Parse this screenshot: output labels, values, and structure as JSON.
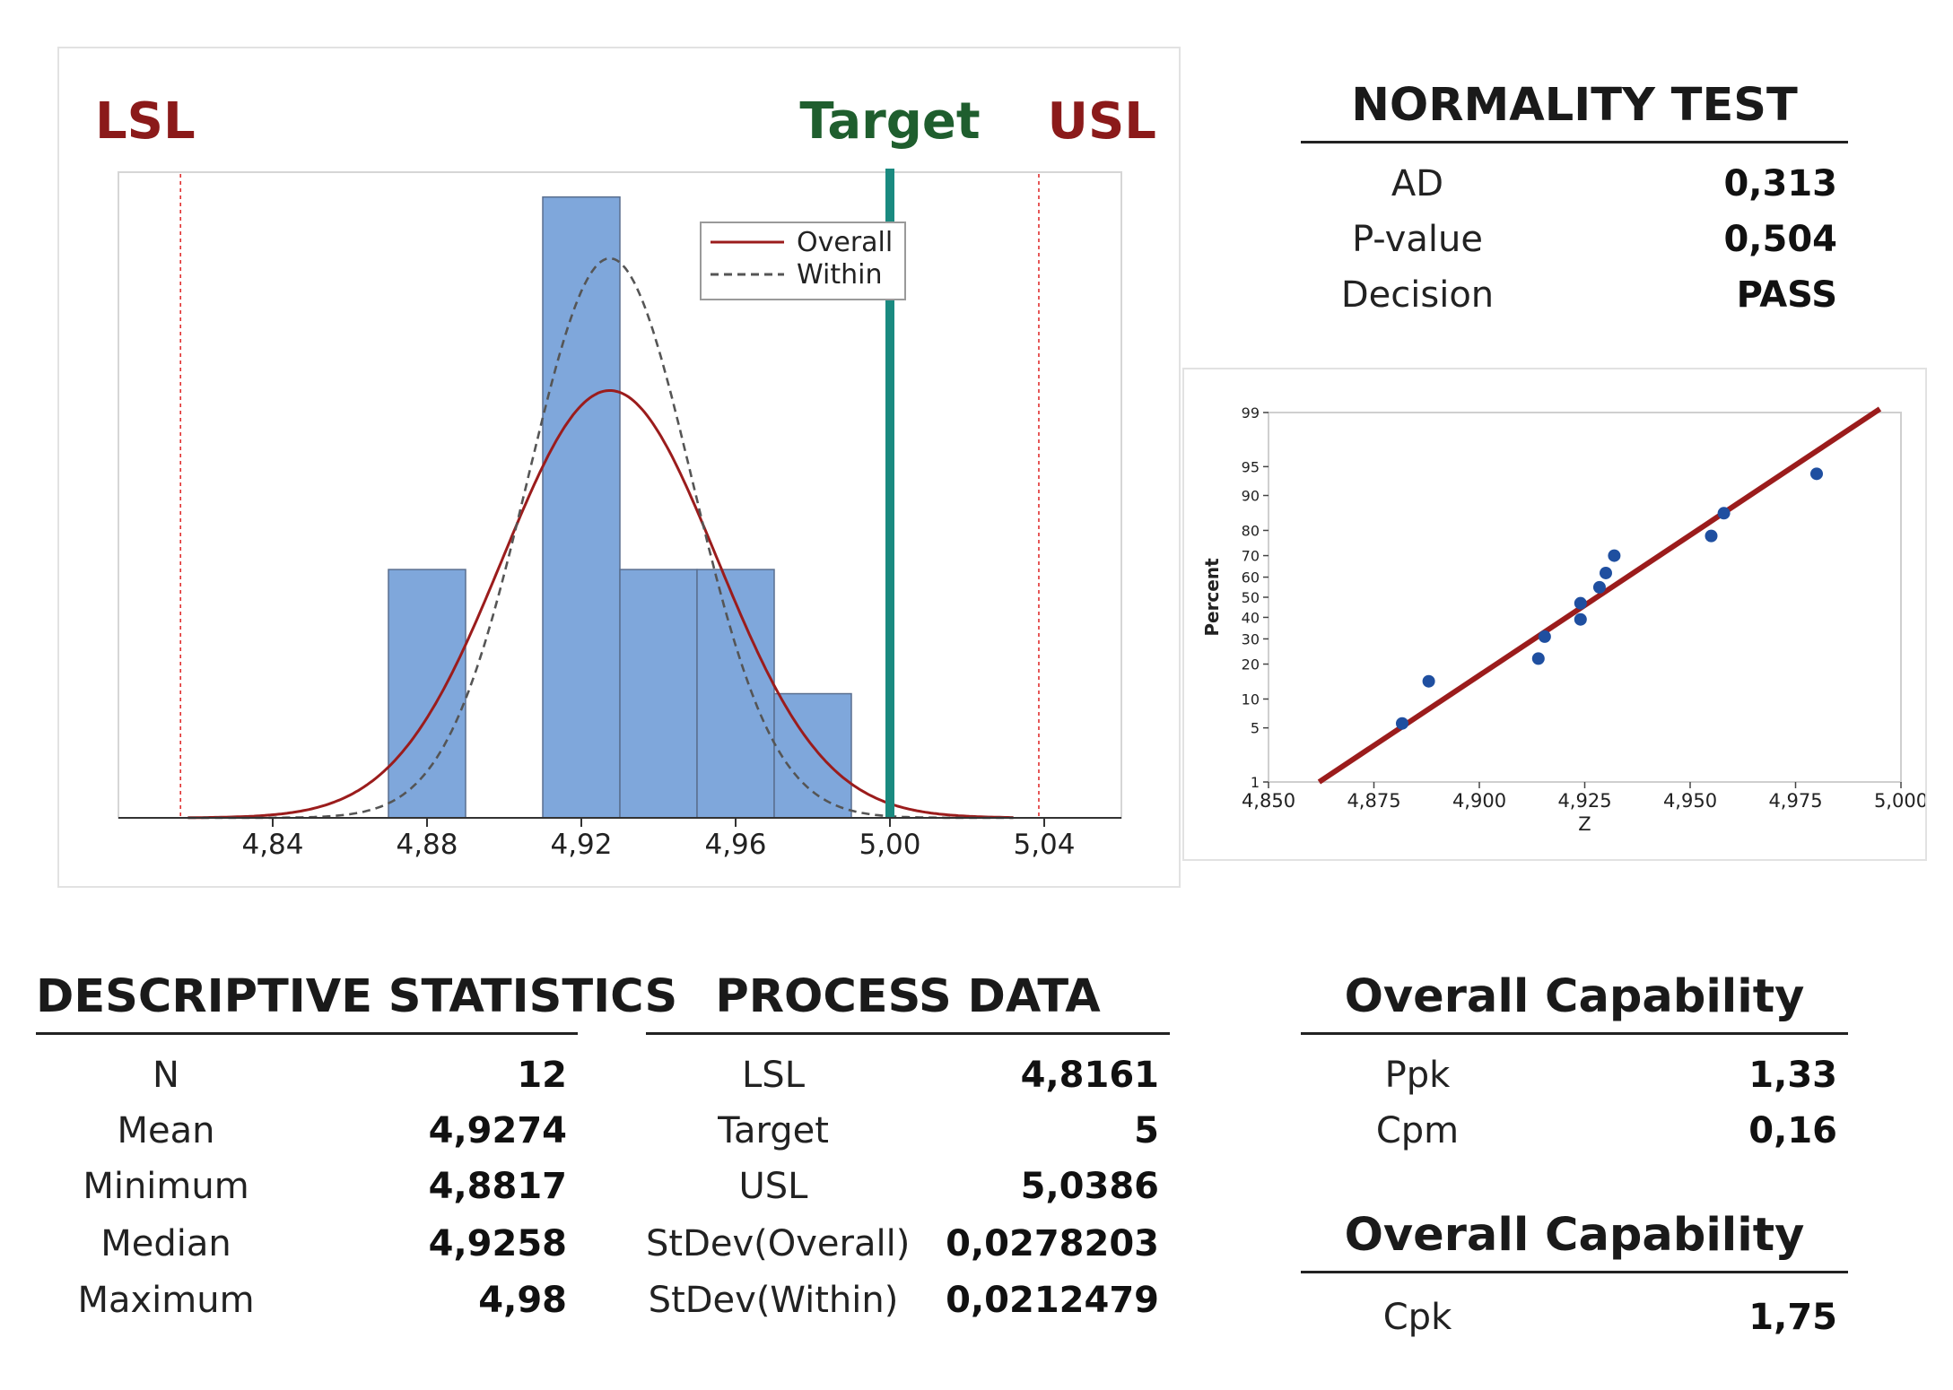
{
  "chart_data": [
    {
      "type": "bar",
      "name": "capability-histogram",
      "bins": [
        {
          "x0": 4.87,
          "x1": 4.89,
          "count": 2
        },
        {
          "x0": 4.91,
          "x1": 4.93,
          "count": 5
        },
        {
          "x0": 4.93,
          "x1": 4.95,
          "count": 2
        },
        {
          "x0": 4.95,
          "x1": 4.97,
          "count": 2
        },
        {
          "x0": 4.97,
          "x1": 4.99,
          "count": 1
        }
      ],
      "xlim": [
        4.8,
        5.06
      ],
      "ylim": [
        0,
        5.2
      ],
      "x_ticks": [
        "4,84",
        "4,88",
        "4,92",
        "4,96",
        "5,00",
        "5,04"
      ],
      "x_tick_values": [
        4.84,
        4.88,
        4.92,
        4.96,
        5.0,
        5.04
      ],
      "curves": [
        {
          "name": "Overall",
          "mean": 4.9274,
          "stdev": 0.0278203,
          "color": "#9b1c1c",
          "style": "solid"
        },
        {
          "name": "Within",
          "mean": 4.9274,
          "stdev": 0.0212479,
          "color": "#555555",
          "style": "dashed"
        }
      ],
      "reference_lines": [
        {
          "label": "LSL",
          "value": 4.8161,
          "color": "#8b1a1a"
        },
        {
          "label": "Target",
          "value": 5.0,
          "color": "#1f5e2e"
        },
        {
          "label": "USL",
          "value": 5.0386,
          "color": "#8b1a1a"
        }
      ],
      "target_line_color": "#1a8a80",
      "bar_color": "#7fa7db",
      "legend": [
        "Overall",
        "Within"
      ],
      "legend_position": "top-right"
    },
    {
      "type": "scatter",
      "name": "normal-probability-plot",
      "xlabel": "Z",
      "ylabel": "Percent",
      "xlim": [
        4.85,
        5.0
      ],
      "x_ticks": [
        "4,850",
        "4,875",
        "4,900",
        "4,925",
        "4,950",
        "4,975",
        "5,000"
      ],
      "x_tick_values": [
        4.85,
        4.875,
        4.9,
        4.925,
        4.95,
        4.975,
        5.0
      ],
      "y_ticks": [
        "1",
        "5",
        "10",
        "20",
        "30",
        "40",
        "50",
        "60",
        "70",
        "80",
        "90",
        "95",
        "99"
      ],
      "y_tick_values": [
        1,
        5,
        10,
        20,
        30,
        40,
        50,
        60,
        70,
        80,
        90,
        95,
        99
      ],
      "points": [
        {
          "x": 4.8817,
          "y": 5.6
        },
        {
          "x": 4.888,
          "y": 14.5
        },
        {
          "x": 4.914,
          "y": 22
        },
        {
          "x": 4.9155,
          "y": 31
        },
        {
          "x": 4.924,
          "y": 39
        },
        {
          "x": 4.924,
          "y": 47
        },
        {
          "x": 4.9285,
          "y": 55
        },
        {
          "x": 4.93,
          "y": 62
        },
        {
          "x": 4.932,
          "y": 70
        },
        {
          "x": 4.955,
          "y": 78
        },
        {
          "x": 4.958,
          "y": 85.5
        },
        {
          "x": 4.98,
          "y": 94
        }
      ],
      "fit_line": {
        "mean": 4.9274,
        "stdev": 0.0278203,
        "color": "#9b1c1c"
      },
      "point_color": "#1f4fa0"
    }
  ],
  "sections": {
    "normality": {
      "title": "NORMALITY TEST",
      "rows": [
        {
          "label": "AD",
          "value": "0,313"
        },
        {
          "label": "P-value",
          "value": "0,504"
        },
        {
          "label": "Decision",
          "value": "PASS"
        }
      ]
    },
    "descriptive": {
      "title": "DESCRIPTIVE STATISTICS",
      "rows": [
        {
          "label": "N",
          "value": "12"
        },
        {
          "label": "Mean",
          "value": "4,9274"
        },
        {
          "label": "Minimum",
          "value": "4,8817"
        },
        {
          "label": "Median",
          "value": "4,9258"
        },
        {
          "label": "Maximum",
          "value": "4,98"
        }
      ]
    },
    "process": {
      "title": "PROCESS DATA",
      "rows": [
        {
          "label": "LSL",
          "value": "4,8161"
        },
        {
          "label": "Target",
          "value": "5"
        },
        {
          "label": "USL",
          "value": "5,0386"
        },
        {
          "label": "StDev(Overall)",
          "value": "0,0278203"
        },
        {
          "label": "StDev(Within)",
          "value": "0,0212479"
        }
      ]
    },
    "overall": {
      "title": "Overall Capability",
      "rows": [
        {
          "label": "Ppk",
          "value": "1,33"
        },
        {
          "label": "Cpm",
          "value": "0,16"
        }
      ]
    },
    "within": {
      "title": "Overall Capability",
      "rows": [
        {
          "label": "Cpk",
          "value": "1,75"
        }
      ]
    }
  }
}
